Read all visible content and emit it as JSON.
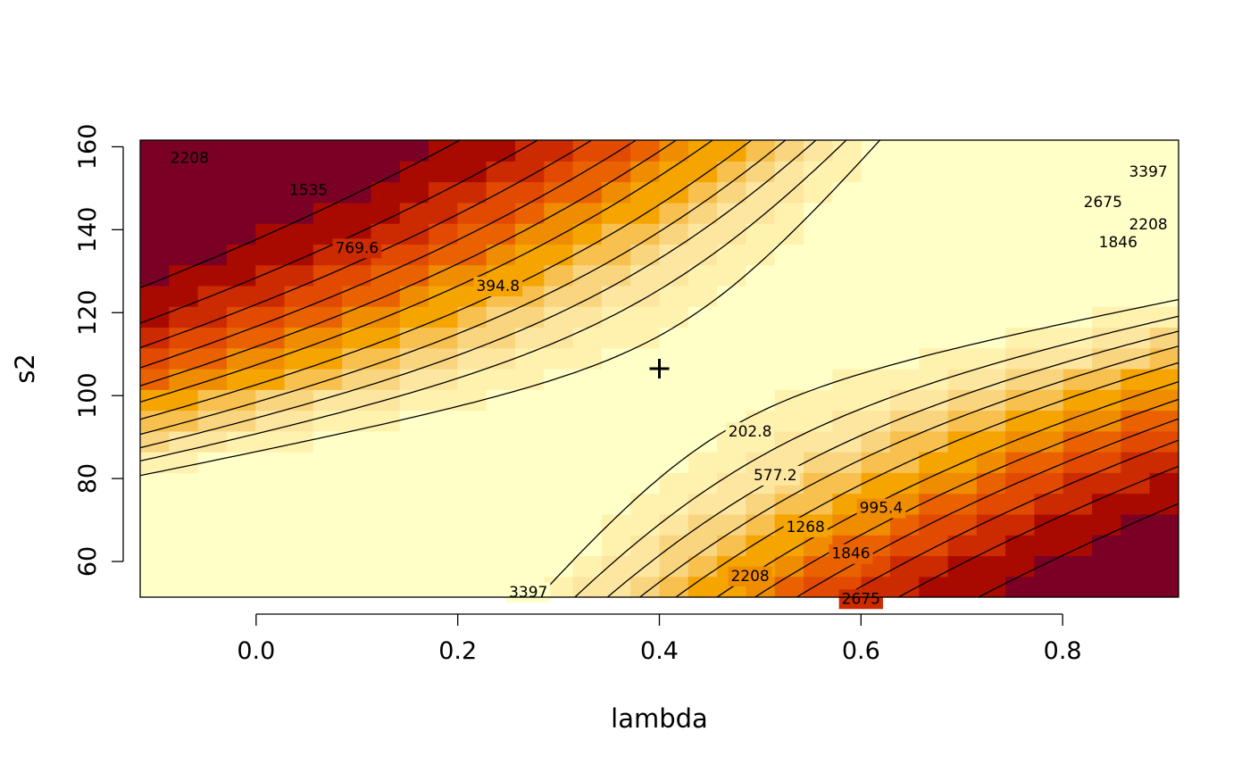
{
  "chart_data": {
    "type": "heatmap",
    "subtype": "filled-contour with labeled contour lines",
    "title": "",
    "xlabel": "lambda",
    "ylabel": "s2",
    "xlim": [
      -0.115,
      0.915
    ],
    "ylim": [
      51.4,
      161.6
    ],
    "x_ticks": [
      0.0,
      0.2,
      0.4,
      0.6,
      0.8
    ],
    "x_tick_labels": [
      "0.0",
      "0.2",
      "0.4",
      "0.6",
      "0.8"
    ],
    "y_ticks": [
      60,
      80,
      100,
      120,
      140,
      160
    ],
    "y_tick_labels": [
      "60",
      "80",
      "100",
      "120",
      "140",
      "160"
    ],
    "grid": false,
    "legend": "none",
    "optimum_marker": {
      "lambda": 0.4,
      "s2": 106.5,
      "symbol": "+"
    },
    "contour_levels": [
      202.8,
      394.8,
      577.2,
      769.6,
      995.4,
      1268,
      1535,
      1846,
      2208,
      2675,
      3397
    ],
    "contour_labels": [
      {
        "text": "202.8",
        "x": 0.49,
        "y": 91.2
      },
      {
        "text": "394.8",
        "x": 0.24,
        "y": 126.3
      },
      {
        "text": "577.2",
        "x": 0.515,
        "y": 80.7
      },
      {
        "text": "769.6",
        "x": 0.1,
        "y": 135.5
      },
      {
        "text": "995.4",
        "x": 0.62,
        "y": 72.8
      },
      {
        "text": "1268",
        "x": 0.545,
        "y": 68.2
      },
      {
        "text": "1535",
        "x": 0.052,
        "y": 149.4
      },
      {
        "text": "1846",
        "x": 0.59,
        "y": 61.8
      },
      {
        "text": "1846",
        "x": 0.855,
        "y": 136.8
      },
      {
        "text": "2208",
        "x": 0.49,
        "y": 56.4
      },
      {
        "text": "2208",
        "x": -0.066,
        "y": 157.2
      },
      {
        "text": "2208",
        "x": 0.885,
        "y": 141.2
      },
      {
        "text": "2675",
        "x": 0.6,
        "y": 50.9
      },
      {
        "text": "2675",
        "x": 0.84,
        "y": 146.5
      },
      {
        "text": "3397",
        "x": 0.27,
        "y": 52.5
      },
      {
        "text": "3397",
        "x": 0.885,
        "y": 153.9
      }
    ],
    "colors": {
      "level_0": "#ffffc8",
      "level_1": "#fff2af",
      "level_2": "#fde6a0",
      "level_3": "#f9d57f",
      "level_4": "#f8c04e",
      "level_5": "#f5a400",
      "level_6": "#f08c00",
      "level_7": "#ea6200",
      "level_8": "#e14a00",
      "level_9": "#cc2a00",
      "level_10": "#a80a00",
      "level_11": "#7a0026"
    }
  }
}
